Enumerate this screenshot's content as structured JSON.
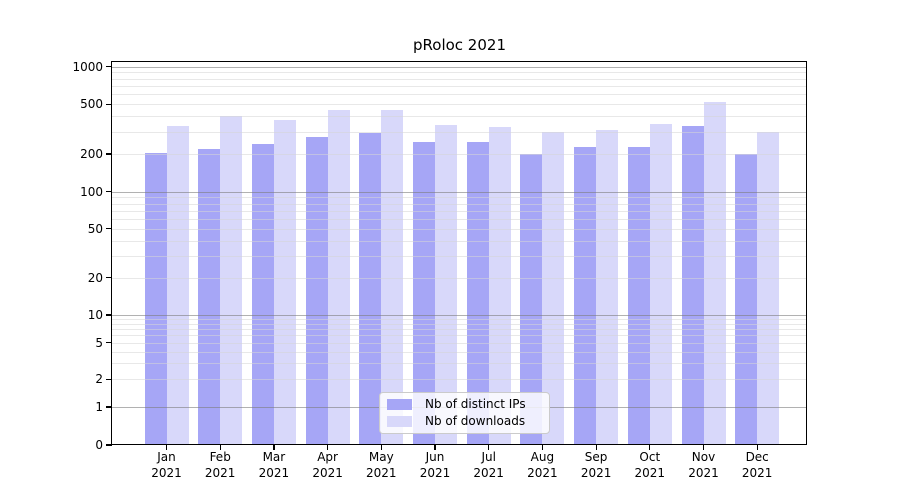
{
  "chart_data": {
    "type": "bar",
    "title": "pRoloc 2021",
    "categories": [
      {
        "month": "Jan",
        "year": "2021"
      },
      {
        "month": "Feb",
        "year": "2021"
      },
      {
        "month": "Mar",
        "year": "2021"
      },
      {
        "month": "Apr",
        "year": "2021"
      },
      {
        "month": "May",
        "year": "2021"
      },
      {
        "month": "Jun",
        "year": "2021"
      },
      {
        "month": "Jul",
        "year": "2021"
      },
      {
        "month": "Aug",
        "year": "2021"
      },
      {
        "month": "Sep",
        "year": "2021"
      },
      {
        "month": "Oct",
        "year": "2021"
      },
      {
        "month": "Nov",
        "year": "2021"
      },
      {
        "month": "Dec",
        "year": "2021"
      }
    ],
    "series": [
      {
        "name": "Nb of distinct IPs",
        "color": "#a6a6f6",
        "values": [
          203,
          220,
          238,
          271,
          296,
          251,
          250,
          199,
          228,
          228,
          332,
          200
        ]
      },
      {
        "name": "Nb of downloads",
        "color": "#d8d8fa",
        "values": [
          332,
          400,
          372,
          449,
          446,
          338,
          326,
          302,
          308,
          350,
          520,
          301
        ]
      }
    ],
    "xlabel": "",
    "ylabel": "",
    "yscale": "log-like with 0 baseline",
    "y_ticks": [
      {
        "label": "0",
        "value": 0
      },
      {
        "label": "1",
        "value": 1
      },
      {
        "label": "2",
        "value": 2
      },
      {
        "label": "5",
        "value": 5
      },
      {
        "label": "10",
        "value": 10
      },
      {
        "label": "20",
        "value": 20
      },
      {
        "label": "50",
        "value": 50
      },
      {
        "label": "100",
        "value": 100
      },
      {
        "label": "200",
        "value": 200
      },
      {
        "label": "500",
        "value": 500
      },
      {
        "label": "1000",
        "value": 1000
      }
    ],
    "ylim": [
      0,
      1100
    ],
    "grid": {
      "horizontal_major": true,
      "horizontal_minor": true,
      "vertical": false
    },
    "legend_position": "inside, lower center"
  },
  "colors": {
    "grid_major": "#b3b3b3",
    "grid_minor": "#e9e9e9",
    "axis": "#000000",
    "background": "#ffffff"
  }
}
